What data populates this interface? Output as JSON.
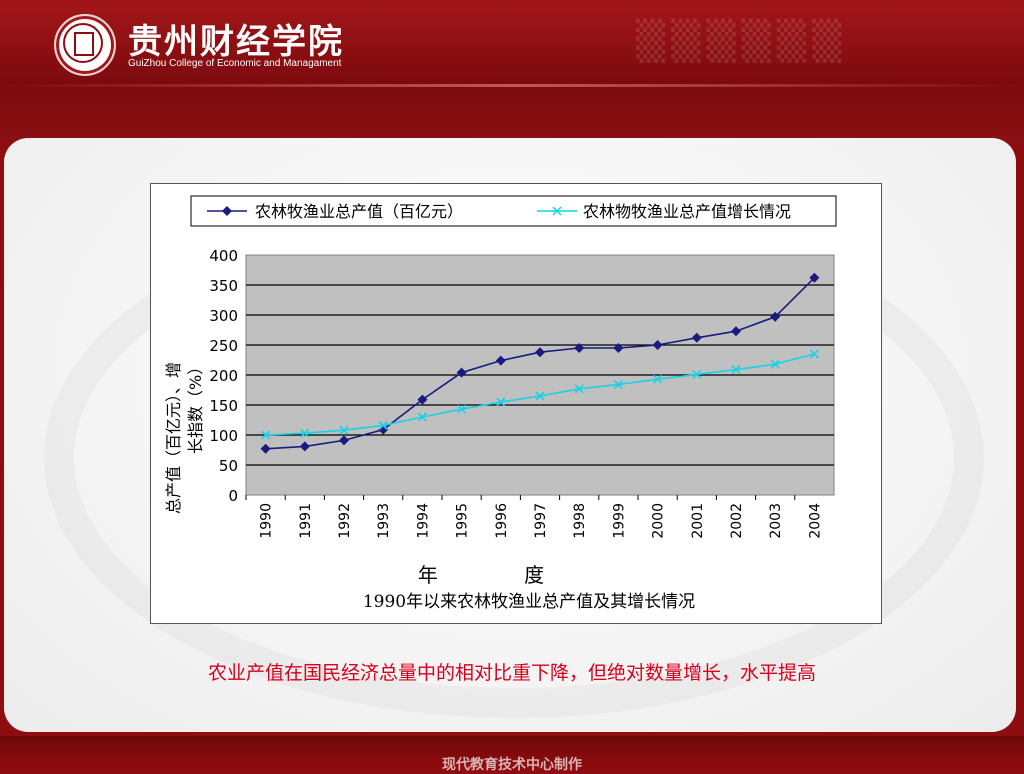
{
  "header": {
    "brand_cn": "贵州财经学院",
    "brand_en": "GuiZhou College of Economic and Managament"
  },
  "chart_data": {
    "type": "line",
    "title": "1990年以来农林牧渔业总产值及其增长情况",
    "xlabel": "年 度",
    "ylabel_line1": "总产值（百亿元）、增",
    "ylabel_line2": "长指数（%）",
    "x": [
      "1990",
      "1991",
      "1992",
      "1993",
      "1994",
      "1995",
      "1996",
      "1997",
      "1998",
      "1999",
      "2000",
      "2001",
      "2002",
      "2003",
      "2004"
    ],
    "ylim": [
      0,
      400
    ],
    "yticks": [
      0,
      50,
      100,
      150,
      200,
      250,
      300,
      350,
      400
    ],
    "grid": true,
    "legend_position": "top",
    "series": [
      {
        "name": "农林牧渔业总产值（百亿元）",
        "color": "#1a1a80",
        "marker": "diamond",
        "values": [
          77,
          81,
          91,
          109,
          159,
          204,
          224,
          238,
          245,
          245,
          250,
          262,
          273,
          297,
          362
        ]
      },
      {
        "name": "农林物牧渔业总产值增长情况",
        "color": "#1ad1e6",
        "marker": "x",
        "values": [
          100,
          103,
          108,
          116,
          130,
          143,
          155,
          165,
          177,
          184,
          193,
          201,
          209,
          218,
          235
        ]
      }
    ]
  },
  "caption": "农业产值在国民经济总量中的相对比重下降，但绝对数量增长，水平提高",
  "footer": {
    "text": "现代教育技术中心制作"
  },
  "colors": {
    "brand_red": "#8e0d10",
    "caption_red": "#d6001c",
    "plot_bg": "#c0c0c0"
  }
}
